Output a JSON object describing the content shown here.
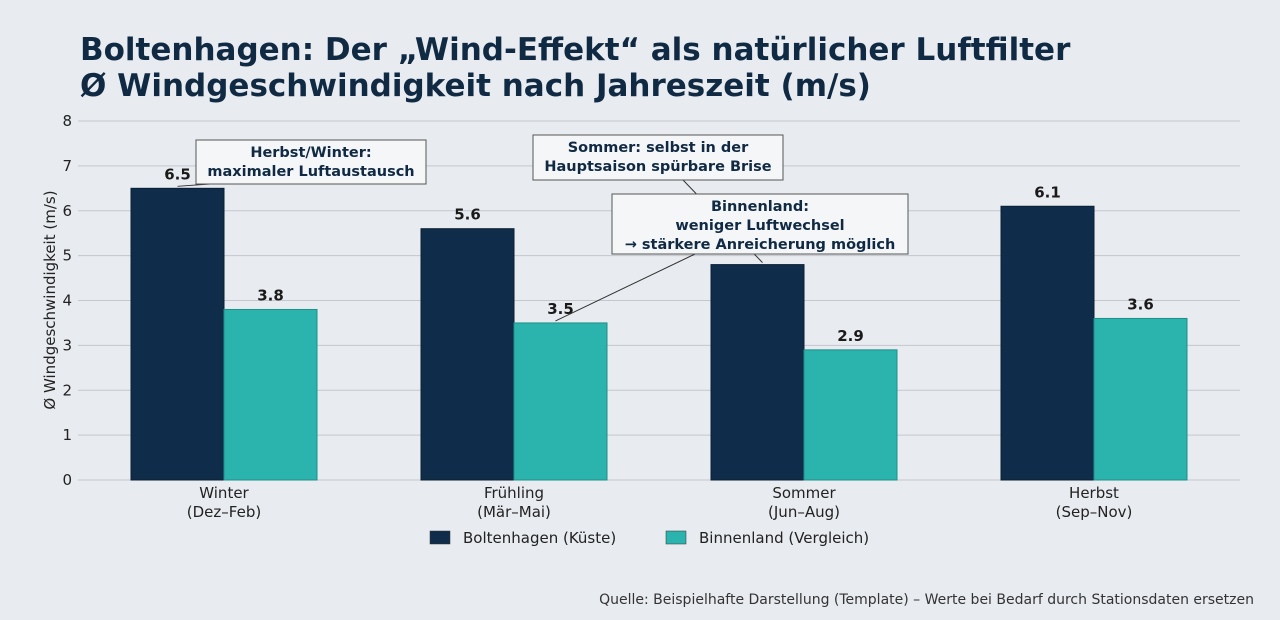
{
  "title": {
    "line1": "Boltenhagen: Der „Wind-Effekt“ als natürlicher Luftfilter",
    "line2": "Ø Windgeschwindigkeit nach Jahreszeit (m/s)"
  },
  "source": "Quelle: Beispielhafte Darstellung (Template) – Werte bei Bedarf durch Stationsdaten ersetzen",
  "chart_data": {
    "type": "bar",
    "title": "Boltenhagen: Der „Wind-Effekt“ als natürlicher Luftfilter / Ø Windgeschwindigkeit nach Jahreszeit (m/s)",
    "xlabel": "",
    "ylabel": "Ø Windgeschwindigkeit (m/s)",
    "ylim": [
      0,
      8
    ],
    "yticks": [
      0,
      1,
      2,
      3,
      4,
      5,
      6,
      7,
      8
    ],
    "grid": true,
    "legend": "bottom-center",
    "categories": [
      [
        "Winter",
        "(Dez–Feb)"
      ],
      [
        "Frühling",
        "(Mär–Mai)"
      ],
      [
        "Sommer",
        "(Jun–Aug)"
      ],
      [
        "Herbst",
        "(Sep–Nov)"
      ]
    ],
    "series": [
      {
        "name": "Boltenhagen (Küste)",
        "color": "#0f2d4a",
        "values": [
          6.5,
          5.6,
          4.8,
          6.1
        ],
        "labels": [
          "6.5",
          "5.6",
          "",
          "6.1"
        ]
      },
      {
        "name": "Binnenland (Vergleich)",
        "color": "#2bb3ad",
        "values": [
          3.8,
          3.5,
          2.9,
          3.6
        ],
        "labels": [
          "3.8",
          "3.5",
          "2.9",
          "3.6"
        ]
      }
    ],
    "annotations": [
      {
        "lines": [
          "Herbst/Winter:",
          "maximaler Luftaustausch"
        ],
        "target": {
          "series": 0,
          "category": 0
        }
      },
      {
        "lines": [
          "Sommer: selbst in der",
          "Hauptsaison spürbare Brise"
        ],
        "target": {
          "series": 0,
          "category": 2
        }
      },
      {
        "lines": [
          "Binnenland:",
          "weniger Luftwechsel",
          "→ stärkere Anreicherung möglich"
        ],
        "target": {
          "series": 1,
          "category": 1
        }
      }
    ]
  }
}
